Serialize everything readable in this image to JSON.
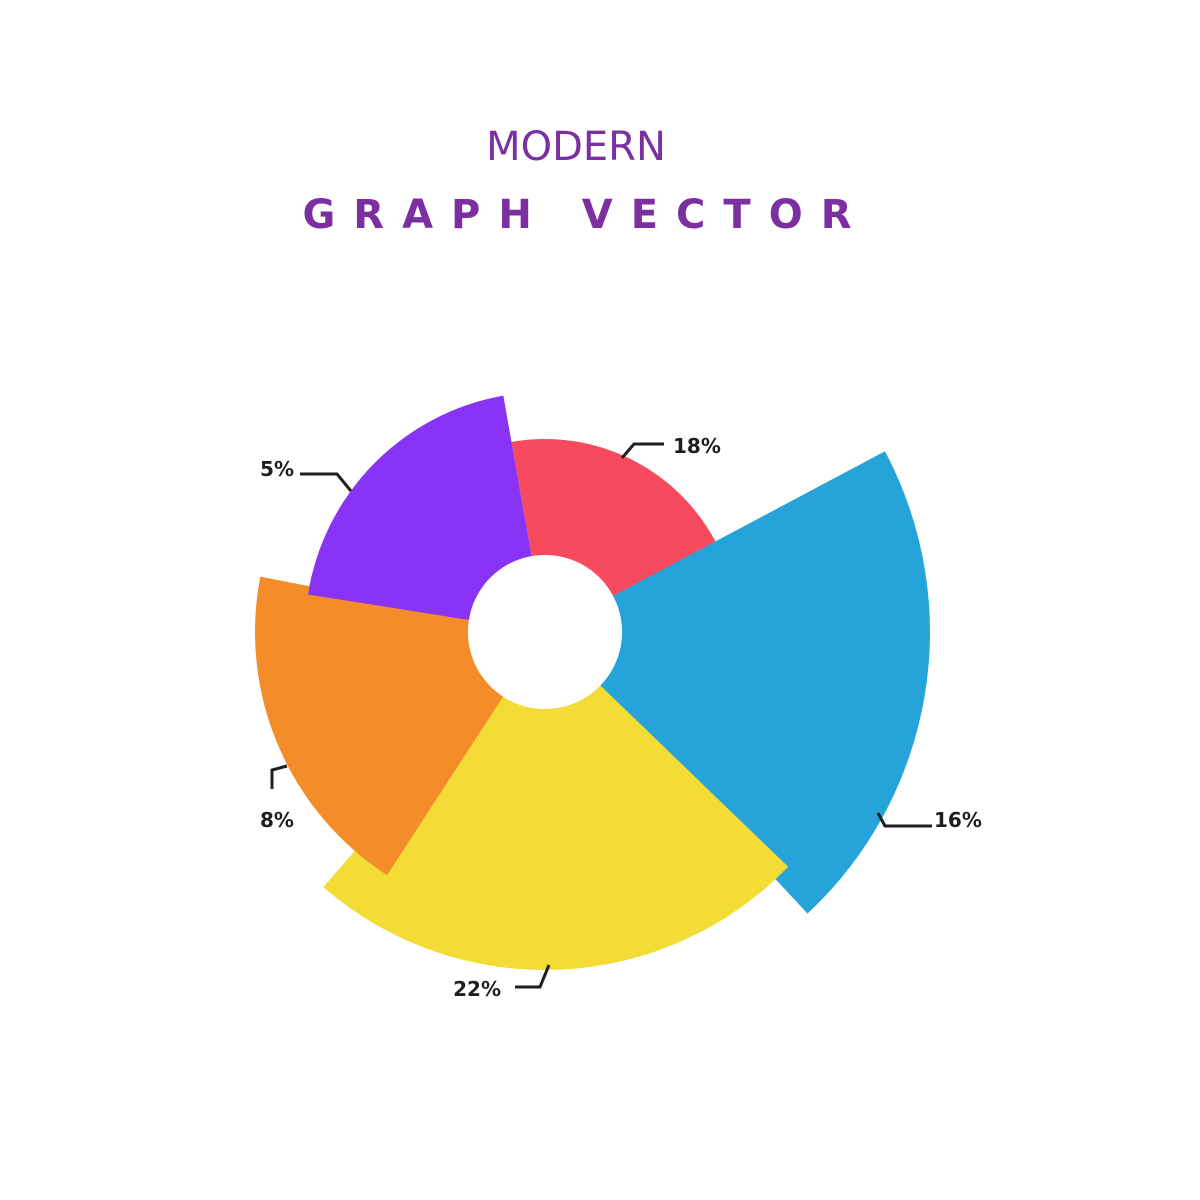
{
  "title": {
    "line1": "MODERN",
    "line2": "GRAPH VECTOR"
  },
  "colors": {
    "title": "#7b2fa0",
    "label": "#1f1f1f",
    "background": "#ffffff"
  },
  "chart_data": {
    "type": "pie",
    "variant": "polar-area (rose) with center hole",
    "slices": [
      {
        "label": "18%",
        "value": 18,
        "color": "#f84a5e"
      },
      {
        "label": "16%",
        "value": 16,
        "color": "#26a4da"
      },
      {
        "label": "22%",
        "value": 22,
        "color": "#f2dc35"
      },
      {
        "label": "8%",
        "value": 8,
        "color": "#f48c29"
      },
      {
        "label": "5%",
        "value": 5,
        "color": "#8833f5"
      }
    ]
  }
}
